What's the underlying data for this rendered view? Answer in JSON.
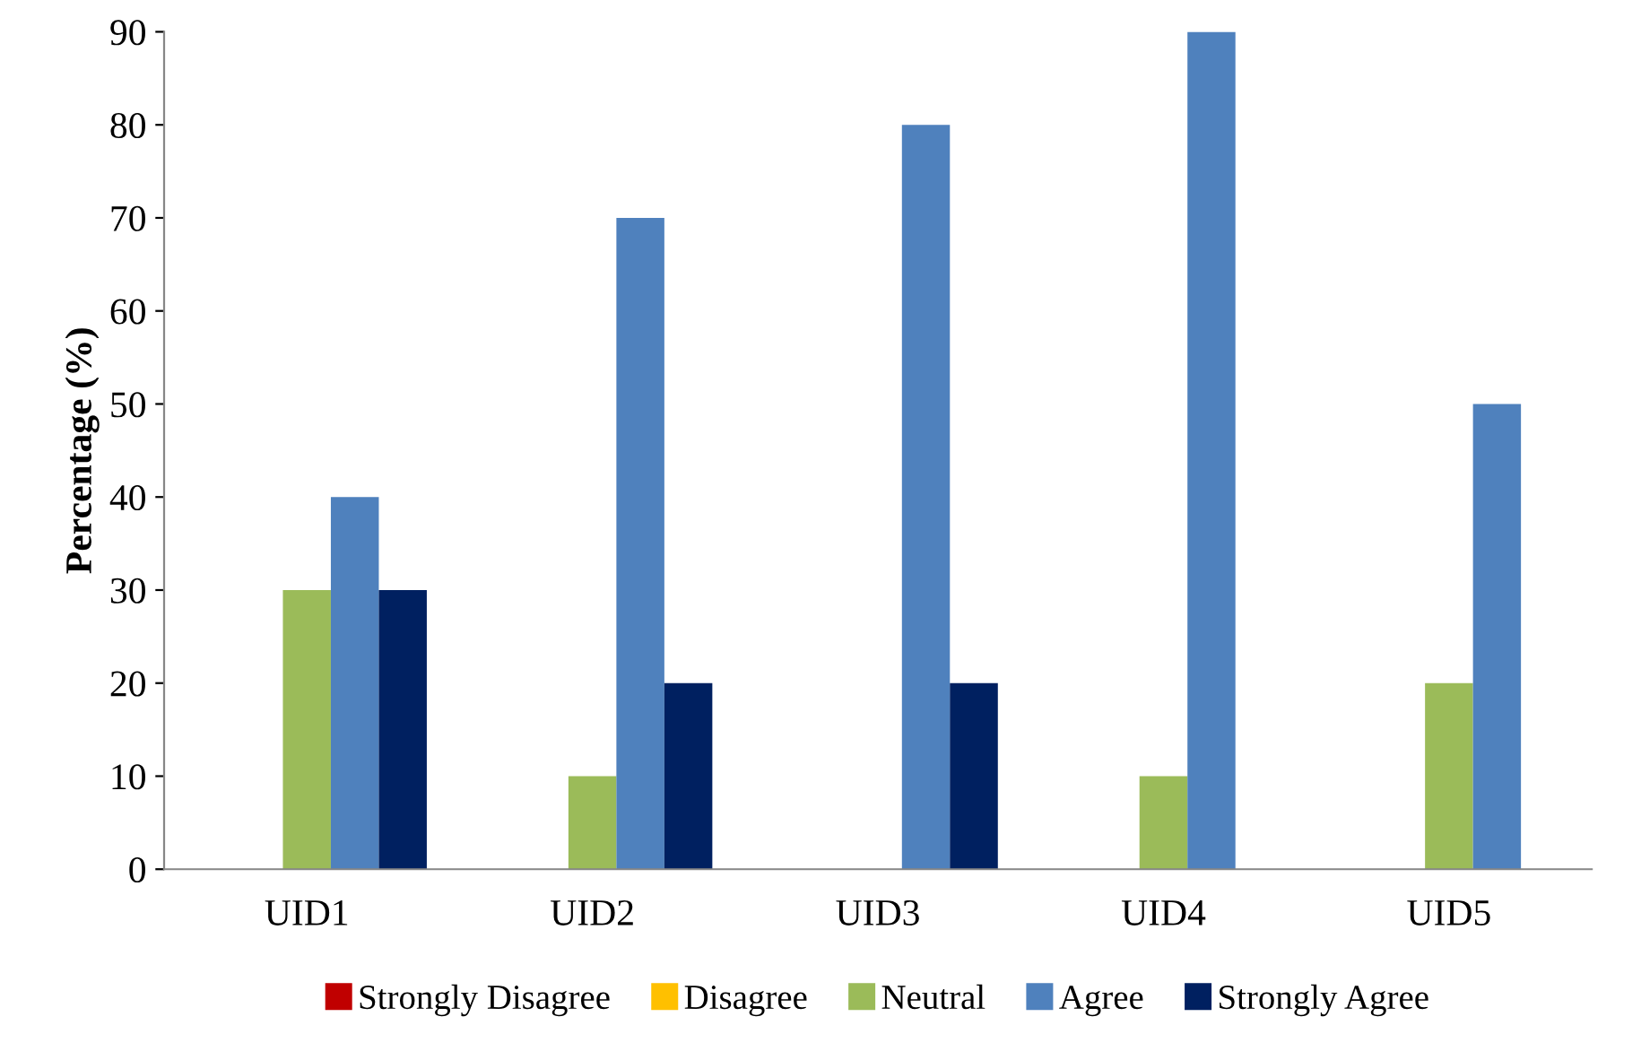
{
  "chart_data": {
    "type": "bar",
    "ylabel": "Percentage (%)",
    "categories": [
      "UID1",
      "UID2",
      "UID3",
      "UID4",
      "UID5"
    ],
    "series": [
      {
        "name": "Strongly Disagree",
        "color": "#c00000",
        "values": [
          0,
          0,
          0,
          0,
          0
        ]
      },
      {
        "name": "Disagree",
        "color": "#ffc000",
        "values": [
          0,
          0,
          0,
          0,
          0
        ]
      },
      {
        "name": "Neutral",
        "color": "#9bbb59",
        "values": [
          30,
          10,
          0,
          10,
          20
        ]
      },
      {
        "name": "Agree",
        "color": "#4f81bd",
        "values": [
          40,
          70,
          80,
          90,
          50
        ]
      },
      {
        "name": "Strongly Agree",
        "color": "#002060",
        "values": [
          30,
          20,
          20,
          0,
          null
        ]
      }
    ],
    "ylim": [
      0,
      90
    ],
    "yticks": [
      0,
      10,
      20,
      30,
      40,
      50,
      60,
      70,
      80,
      90
    ],
    "grid": false,
    "legend": "bottom"
  }
}
